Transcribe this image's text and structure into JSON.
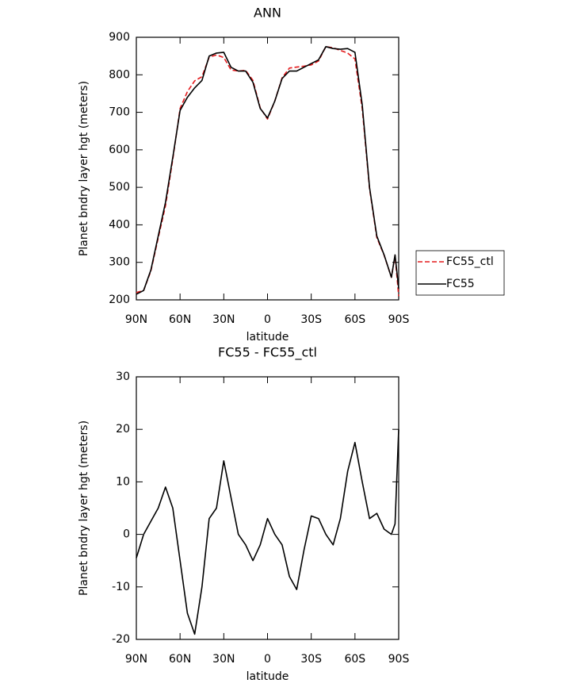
{
  "chart_data": [
    {
      "type": "line",
      "title": "ANN",
      "xlabel": "latitude",
      "ylabel": "Planet bndry layer hgt (meters)",
      "x": [
        90,
        85,
        80,
        75,
        70,
        65,
        60,
        55,
        50,
        45,
        40,
        35,
        30,
        25,
        20,
        15,
        10,
        5,
        0,
        -5,
        -10,
        -15,
        -20,
        -25,
        -30,
        -35,
        -40,
        -45,
        -50,
        -55,
        -60,
        -65,
        -70,
        -75,
        -80,
        -85,
        -87.5,
        -90
      ],
      "series": [
        {
          "name": "FC55_ctl",
          "color": "#e41a1c",
          "dash": true,
          "values": [
            219.5,
            225,
            277.5,
            365,
            451,
            575,
            710,
            755,
            784,
            795,
            847,
            853,
            846,
            813,
            810,
            812,
            785,
            712,
            682,
            730,
            792,
            818,
            820.5,
            823,
            826.5,
            837,
            875,
            872,
            865,
            858,
            842.5,
            710,
            497,
            366,
            319,
            260,
            318,
            210
          ]
        },
        {
          "name": "FC55",
          "color": "#000000",
          "dash": false,
          "values": [
            215,
            225,
            280,
            370,
            460,
            580,
            705,
            740,
            765,
            785,
            850,
            858,
            860,
            820,
            810,
            810,
            780,
            710,
            685,
            730,
            790,
            810,
            810,
            820,
            830,
            840,
            875,
            870,
            868,
            870,
            860,
            720,
            500,
            370,
            320,
            260,
            320,
            230
          ]
        }
      ],
      "xlim": [
        90,
        -90
      ],
      "xticks": [
        {
          "value": 90,
          "label": "90N"
        },
        {
          "value": 60,
          "label": "60N"
        },
        {
          "value": 30,
          "label": "30N"
        },
        0,
        {
          "value": -30,
          "label": "30S"
        },
        {
          "value": -60,
          "label": "60S"
        },
        {
          "value": -90,
          "label": "90S"
        }
      ],
      "ylim": [
        200,
        900
      ],
      "yticks": [
        200,
        300,
        400,
        500,
        600,
        700,
        800,
        900
      ],
      "legend": "right"
    },
    {
      "type": "line",
      "title": "FC55 - FC55_ctl",
      "xlabel": "latitude",
      "ylabel": "Planet bndry layer hgt (meters)",
      "x": [
        90,
        85,
        80,
        75,
        70,
        65,
        60,
        55,
        50,
        45,
        40,
        35,
        30,
        25,
        20,
        15,
        10,
        5,
        0,
        -5,
        -10,
        -15,
        -20,
        -25,
        -30,
        -35,
        -40,
        -45,
        -50,
        -55,
        -60,
        -65,
        -70,
        -75,
        -80,
        -85,
        -87.5,
        -90
      ],
      "series": [
        {
          "color": "#000000",
          "dash": false,
          "values": [
            -4.5,
            0,
            2.5,
            5,
            9,
            5,
            -5,
            -15,
            -19,
            -10,
            3,
            5,
            14,
            7,
            0,
            -2,
            -5,
            -2,
            3,
            0,
            -2,
            -8,
            -10.5,
            -3,
            3.5,
            3,
            0,
            -2,
            3,
            12,
            17.5,
            10,
            3,
            4,
            1,
            0,
            2,
            20
          ]
        }
      ],
      "xlim": [
        90,
        -90
      ],
      "xticks": [
        {
          "value": 90,
          "label": "90N"
        },
        {
          "value": 60,
          "label": "60N"
        },
        {
          "value": 30,
          "label": "30N"
        },
        0,
        {
          "value": -30,
          "label": "30S"
        },
        {
          "value": -60,
          "label": "60S"
        },
        {
          "value": -90,
          "label": "90S"
        }
      ],
      "ylim": [
        -20,
        30
      ],
      "yticks": [
        -20,
        -10,
        0,
        10,
        20,
        30
      ]
    }
  ]
}
